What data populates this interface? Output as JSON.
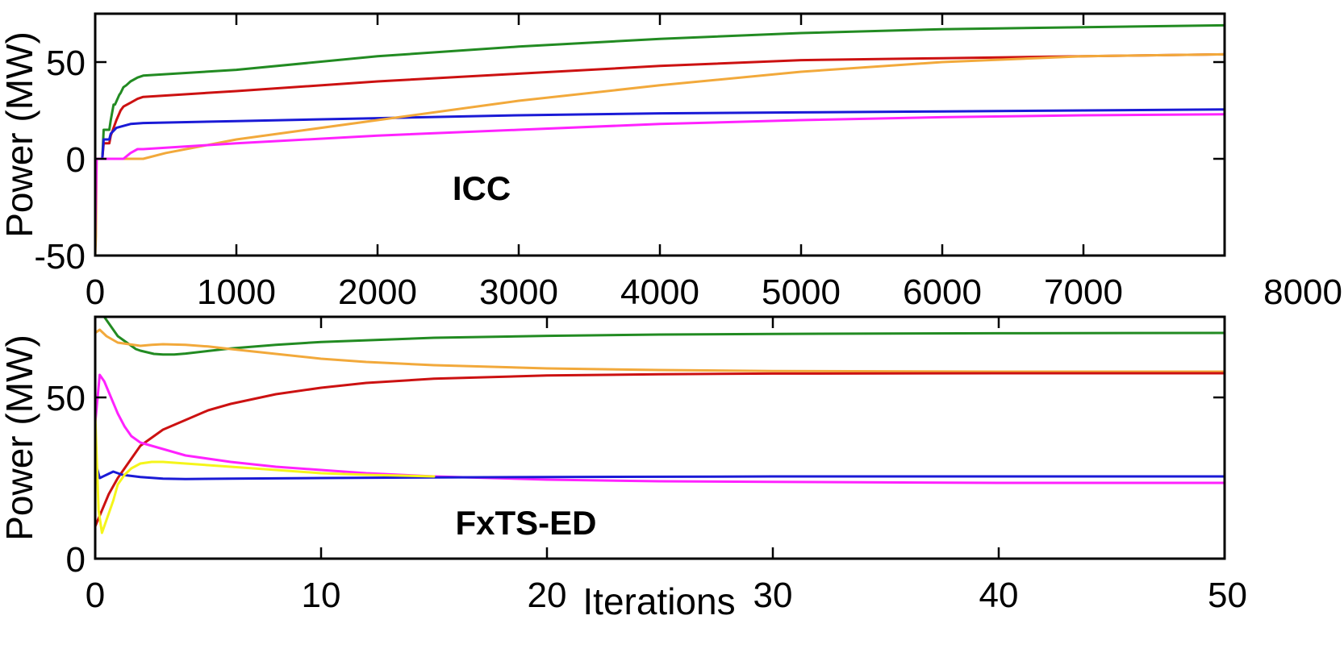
{
  "chart_data": [
    {
      "type": "line",
      "title": "ICC",
      "xlabel": "",
      "ylabel": "Power (MW)",
      "xlim": [
        0,
        8000
      ],
      "ylim": [
        -50,
        75
      ],
      "xticks": [
        0,
        1000,
        2000,
        3000,
        4000,
        5000,
        6000,
        7000,
        8000
      ],
      "yticks": [
        -50,
        0,
        50
      ],
      "xtick_labels": [
        "0",
        "1000",
        "2000",
        "3000",
        "4000",
        "5000",
        "6000",
        "7000",
        "8000"
      ],
      "ytick_labels": [
        "-50",
        "0",
        "50"
      ],
      "series": [
        {
          "name": "green",
          "color": "#228b22",
          "x": [
            0,
            50,
            60,
            100,
            110,
            130,
            140,
            170,
            180,
            200,
            220,
            250,
            300,
            340,
            1000,
            2000,
            3000,
            4000,
            5000,
            6000,
            7000,
            8000
          ],
          "y": [
            0,
            0,
            15,
            15,
            20,
            28,
            28,
            33,
            34,
            37,
            38,
            40,
            42,
            43,
            46,
            53,
            58,
            62,
            65,
            67,
            68,
            69
          ]
        },
        {
          "name": "red",
          "color": "#cc1111",
          "x": [
            0,
            50,
            60,
            100,
            110,
            150,
            180,
            200,
            250,
            300,
            340,
            1000,
            2000,
            3000,
            4000,
            5000,
            6000,
            7000,
            8000
          ],
          "y": [
            0,
            0,
            8,
            8,
            12,
            20,
            25,
            27,
            29,
            31,
            32,
            35,
            40,
            44,
            48,
            51,
            52,
            53,
            54
          ]
        },
        {
          "name": "blue",
          "color": "#1a1ad6",
          "x": [
            0,
            50,
            60,
            100,
            110,
            150,
            200,
            250,
            340,
            1000,
            2000,
            3000,
            4000,
            5000,
            6000,
            7000,
            8000
          ],
          "y": [
            0,
            0,
            10,
            10,
            13,
            16,
            17,
            18,
            18.5,
            19.5,
            21,
            22.5,
            23.5,
            24,
            24.5,
            25,
            25.5
          ]
        },
        {
          "name": "orange",
          "color": "#f2a93b",
          "x": [
            0,
            5,
            10,
            100,
            200,
            300,
            340,
            500,
            1000,
            1500,
            2000,
            3000,
            4000,
            5000,
            6000,
            7000,
            8000
          ],
          "y": [
            -50,
            -40,
            0,
            0,
            0,
            0,
            0,
            3,
            10,
            15,
            20,
            30,
            38,
            45,
            50,
            53,
            54
          ]
        },
        {
          "name": "magenta",
          "color": "#ff22ff",
          "x": [
            0,
            5,
            10,
            100,
            200,
            250,
            300,
            340,
            1000,
            2000,
            3000,
            4000,
            5000,
            6000,
            7000,
            8000
          ],
          "y": [
            -40,
            -20,
            0,
            0,
            0,
            3,
            5,
            5,
            8,
            12,
            15,
            18,
            20,
            21.5,
            22.5,
            23
          ]
        }
      ]
    },
    {
      "type": "line",
      "title": "FxTS-ED",
      "xlabel": "Iterations",
      "ylabel": "Power (MW)",
      "xlim": [
        0,
        50
      ],
      "ylim": [
        0,
        75
      ],
      "xticks": [
        0,
        10,
        20,
        30,
        40,
        50
      ],
      "yticks": [
        0,
        50
      ],
      "xtick_labels": [
        "0",
        "10",
        "20",
        "30",
        "40",
        "50"
      ],
      "ytick_labels": [
        "0",
        "50"
      ],
      "series": [
        {
          "name": "green",
          "color": "#228b22",
          "x": [
            0,
            0.2,
            0.4,
            0.6,
            0.8,
            1.0,
            1.2,
            1.4,
            1.6,
            1.8,
            2.0,
            2.3,
            2.6,
            3,
            3.5,
            4,
            5,
            6,
            8,
            10,
            15,
            20,
            25,
            30,
            40,
            50
          ],
          "y": [
            75,
            75,
            75,
            73,
            71,
            69,
            68,
            67,
            66,
            65,
            64.5,
            64,
            63.5,
            63.3,
            63.3,
            63.6,
            64.4,
            65.2,
            66.3,
            67.2,
            68.5,
            69.1,
            69.5,
            69.7,
            69.9,
            70
          ]
        },
        {
          "name": "orange",
          "color": "#f2a93b",
          "x": [
            0,
            0.2,
            0.5,
            1,
            1.5,
            2,
            2.5,
            3,
            4,
            5,
            6,
            8,
            10,
            12,
            15,
            20,
            25,
            30,
            40,
            50
          ],
          "y": [
            70,
            71,
            69,
            67,
            66.5,
            66,
            66.3,
            66.5,
            66.3,
            65.8,
            65,
            63.5,
            62,
            61,
            60,
            59,
            58.5,
            58.2,
            58,
            58
          ]
        },
        {
          "name": "red",
          "color": "#cc1111",
          "x": [
            0,
            0.3,
            0.6,
            1.0,
            1.5,
            2,
            3,
            4,
            5,
            6,
            8,
            10,
            12,
            15,
            20,
            25,
            30,
            40,
            50
          ],
          "y": [
            10,
            15,
            20,
            25,
            30,
            35,
            40,
            43,
            46,
            48,
            51,
            53,
            54.5,
            55.8,
            56.8,
            57.2,
            57.4,
            57.5,
            57.5
          ]
        },
        {
          "name": "magenta",
          "color": "#ff22ff",
          "x": [
            0,
            0.2,
            0.4,
            0.7,
            1.0,
            1.3,
            1.6,
            2,
            3,
            4,
            6,
            8,
            10,
            12,
            15,
            20,
            25,
            30,
            40,
            50
          ],
          "y": [
            42,
            57,
            55,
            50,
            45,
            41,
            38,
            36,
            34,
            32,
            30,
            28.5,
            27.5,
            26.5,
            25.5,
            24.5,
            24,
            23.8,
            23.5,
            23.5
          ]
        },
        {
          "name": "blue",
          "color": "#1a1ad6",
          "x": [
            0,
            0.2,
            0.5,
            0.8,
            1.2,
            2,
            3,
            4,
            6,
            10,
            15,
            20,
            30,
            40,
            50
          ],
          "y": [
            30,
            25,
            26,
            27,
            26,
            25.3,
            24.8,
            24.7,
            24.8,
            25,
            25.2,
            25.3,
            25.5,
            25.5,
            25.5
          ]
        },
        {
          "name": "yellow",
          "color": "#f5f51a",
          "x": [
            0,
            0.15,
            0.3,
            0.5,
            0.8,
            1.0,
            1.3,
            1.6,
            2,
            2.5,
            3,
            4,
            6,
            8,
            10,
            12,
            15
          ],
          "y": [
            45,
            15,
            8,
            12,
            18,
            23,
            26,
            28,
            29.5,
            30,
            30,
            29.5,
            28.5,
            27.5,
            26.5,
            26,
            25.5
          ]
        }
      ]
    }
  ]
}
